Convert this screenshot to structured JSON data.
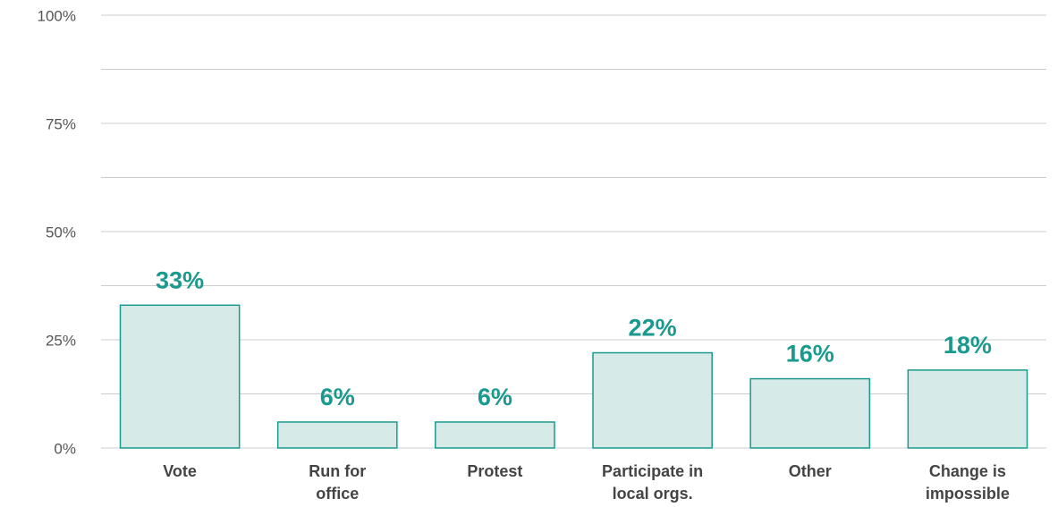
{
  "chart_data": {
    "type": "bar",
    "categories": [
      "Vote",
      "Run for office",
      "Protest",
      "Participate in local orgs.",
      "Other",
      "Change is impossible"
    ],
    "values": [
      33,
      6,
      6,
      22,
      16,
      18
    ],
    "value_labels": [
      "33%",
      "6%",
      "6%",
      "22%",
      "16%",
      "18%"
    ],
    "color": "#d6eae8",
    "edge_color": "#1a9a8e",
    "label_color": "#1a9a8e",
    "ylim": [
      0,
      100
    ],
    "yticks": [
      {
        "value": 0,
        "label": "0%"
      },
      {
        "value": 25,
        "label": "25%"
      },
      {
        "value": 50,
        "label": "50%"
      },
      {
        "value": 75,
        "label": "75%"
      },
      {
        "value": 100,
        "label": "100%"
      }
    ],
    "minor_yticks": [
      12.5,
      37.5,
      62.5,
      87.5
    ],
    "grid": true
  }
}
